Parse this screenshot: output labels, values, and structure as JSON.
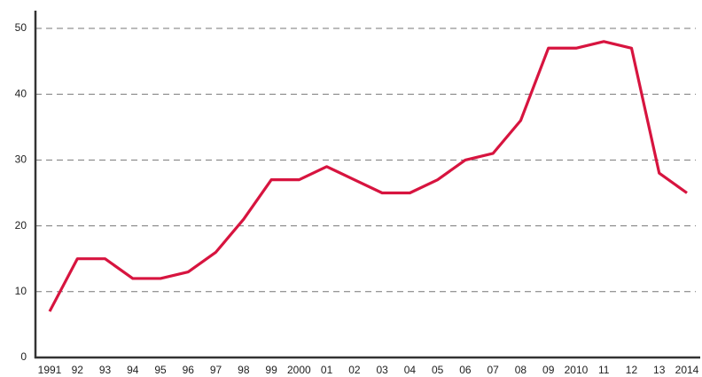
{
  "chart_data": {
    "type": "line",
    "categories": [
      "1991",
      "92",
      "93",
      "94",
      "95",
      "96",
      "97",
      "98",
      "99",
      "2000",
      "01",
      "02",
      "03",
      "04",
      "05",
      "06",
      "07",
      "08",
      "09",
      "2010",
      "11",
      "12",
      "13",
      "2014"
    ],
    "series": [
      {
        "color": "#d7143f",
        "values": [
          7,
          15,
          15,
          12,
          12,
          13,
          16,
          21,
          27,
          27,
          29,
          27,
          25,
          25,
          27,
          30,
          31,
          36,
          47,
          47,
          48,
          47,
          28,
          25
        ]
      }
    ],
    "ylim": [
      0,
      50
    ],
    "yticks": [
      0,
      10,
      20,
      30,
      40,
      50
    ],
    "grid": true
  }
}
